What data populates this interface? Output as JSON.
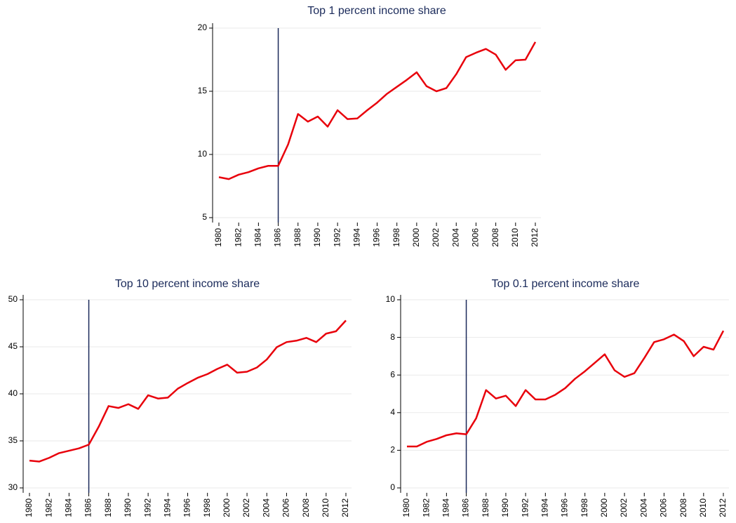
{
  "chart_data": [
    {
      "type": "line",
      "title": "Top 1 percent income share",
      "x": [
        1980,
        1981,
        1982,
        1983,
        1984,
        1985,
        1986,
        1987,
        1988,
        1989,
        1990,
        1991,
        1992,
        1993,
        1994,
        1995,
        1996,
        1997,
        1998,
        1999,
        2000,
        2001,
        2002,
        2003,
        2004,
        2005,
        2006,
        2007,
        2008,
        2009,
        2010,
        2011,
        2012
      ],
      "series": [
        {
          "color": "#e8000b",
          "values": [
            8.2,
            8.05,
            8.4,
            8.6,
            8.9,
            9.1,
            9.1,
            10.8,
            13.2,
            12.6,
            13.0,
            12.2,
            13.5,
            12.8,
            12.85,
            13.5,
            14.1,
            14.8,
            15.35,
            15.9,
            16.5,
            15.4,
            15.0,
            15.25,
            16.35,
            17.7,
            18.05,
            18.35,
            17.9,
            16.7,
            17.45,
            17.5,
            18.9
          ]
        }
      ],
      "xlim": [
        1980,
        2012
      ],
      "xticks": [
        1980,
        1982,
        1984,
        1986,
        1988,
        1990,
        1992,
        1994,
        1996,
        1998,
        2000,
        2002,
        2004,
        2006,
        2008,
        2010,
        2012
      ],
      "ylim": [
        5,
        20
      ],
      "yticks": [
        5,
        10,
        15,
        20
      ],
      "grid": true,
      "vline": 1986,
      "vline_color": "#1a2a5a"
    },
    {
      "type": "line",
      "title": "Top 10 percent income share",
      "x": [
        1980,
        1981,
        1982,
        1983,
        1984,
        1985,
        1986,
        1987,
        1988,
        1989,
        1990,
        1991,
        1992,
        1993,
        1994,
        1995,
        1996,
        1997,
        1998,
        1999,
        2000,
        2001,
        2002,
        2003,
        2004,
        2005,
        2006,
        2007,
        2008,
        2009,
        2010,
        2011,
        2012
      ],
      "series": [
        {
          "color": "#e8000b",
          "values": [
            32.9,
            32.8,
            33.2,
            33.7,
            33.95,
            34.2,
            34.6,
            36.5,
            38.7,
            38.5,
            38.9,
            38.4,
            39.85,
            39.5,
            39.6,
            40.55,
            41.15,
            41.7,
            42.1,
            42.65,
            43.1,
            42.25,
            42.35,
            42.8,
            43.65,
            44.95,
            45.5,
            45.65,
            45.95,
            45.5,
            46.4,
            46.65,
            47.8
          ]
        }
      ],
      "xlim": [
        1980,
        2012
      ],
      "xticks": [
        1980,
        1982,
        1984,
        1986,
        1988,
        1990,
        1992,
        1994,
        1996,
        1998,
        2000,
        2002,
        2004,
        2006,
        2008,
        2010,
        2012
      ],
      "ylim": [
        30,
        50
      ],
      "yticks": [
        30,
        35,
        40,
        45,
        50
      ],
      "grid": true,
      "vline": 1986,
      "vline_color": "#1a2a5a"
    },
    {
      "type": "line",
      "title": "Top 0.1 percent income share",
      "x": [
        1980,
        1981,
        1982,
        1983,
        1984,
        1985,
        1986,
        1987,
        1988,
        1989,
        1990,
        1991,
        1992,
        1993,
        1994,
        1995,
        1996,
        1997,
        1998,
        1999,
        2000,
        2001,
        2002,
        2003,
        2004,
        2005,
        2006,
        2007,
        2008,
        2009,
        2010,
        2011,
        2012
      ],
      "series": [
        {
          "color": "#e8000b",
          "values": [
            2.2,
            2.2,
            2.45,
            2.6,
            2.8,
            2.9,
            2.85,
            3.7,
            5.2,
            4.75,
            4.9,
            4.35,
            5.2,
            4.7,
            4.7,
            4.95,
            5.3,
            5.8,
            6.2,
            6.65,
            7.1,
            6.25,
            5.9,
            6.1,
            6.9,
            7.75,
            7.9,
            8.15,
            7.8,
            7.0,
            7.5,
            7.35,
            8.35
          ]
        }
      ],
      "xlim": [
        1980,
        2012
      ],
      "xticks": [
        1980,
        1982,
        1984,
        1986,
        1988,
        1990,
        1992,
        1994,
        1996,
        1998,
        2000,
        2002,
        2004,
        2006,
        2008,
        2010,
        2012
      ],
      "ylim": [
        0,
        10
      ],
      "yticks": [
        0,
        2,
        4,
        6,
        8,
        10
      ],
      "grid": true,
      "vline": 1986,
      "vline_color": "#1a2a5a"
    }
  ]
}
